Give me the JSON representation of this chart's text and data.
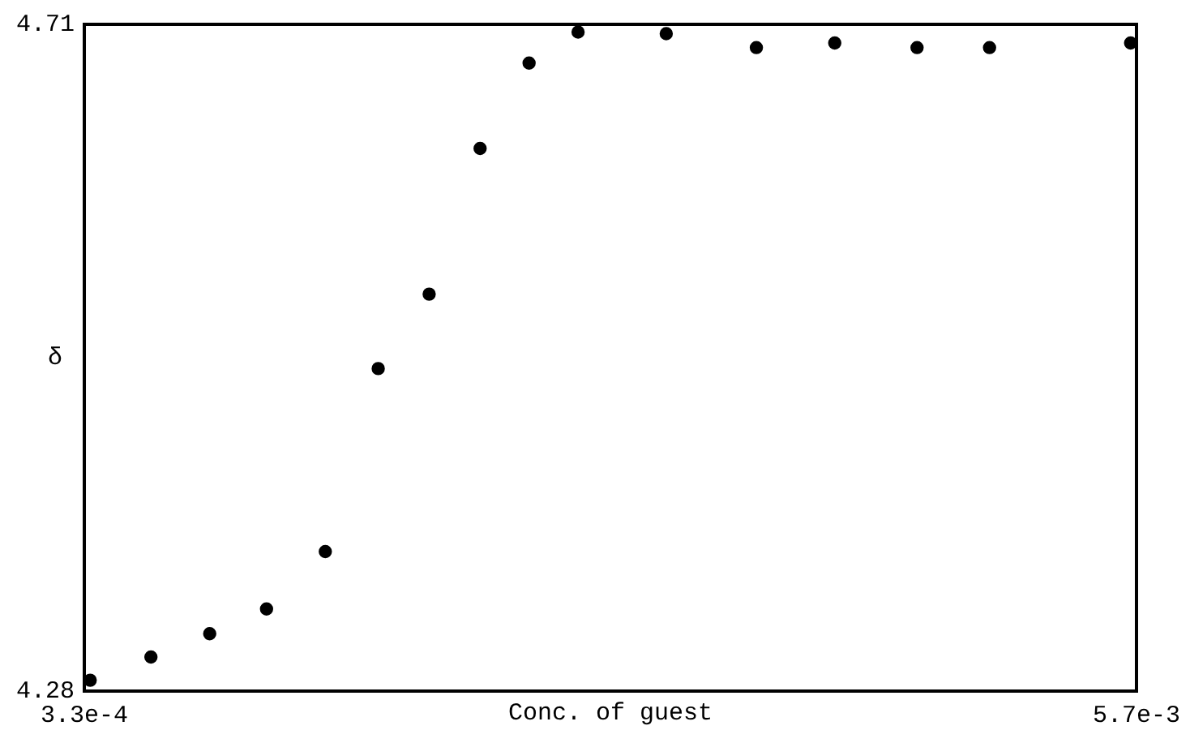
{
  "chart_data": {
    "type": "scatter",
    "xlabel": "Conc. of guest",
    "ylabel": "δ",
    "xlim": [
      0.00033,
      0.0057
    ],
    "ylim": [
      4.28,
      4.71
    ],
    "xticks": [
      {
        "value": 0.00033,
        "label": "3.3e-4"
      },
      {
        "value": 0.0057,
        "label": "5.7e-3"
      }
    ],
    "yticks": [
      4.28,
      4.71
    ],
    "legend": false,
    "marker": "circle",
    "series": [
      {
        "color": "#000000",
        "x": [
          0.00036,
          0.00067,
          0.00097,
          0.00126,
          0.00156,
          0.00183,
          0.00209,
          0.00235,
          0.0026,
          0.00285,
          0.0033,
          0.00376,
          0.00416,
          0.00458,
          0.00495,
          0.00567
        ],
        "values": [
          4.287,
          4.302,
          4.317,
          4.333,
          4.37,
          4.488,
          4.536,
          4.63,
          4.685,
          4.705,
          4.704,
          4.695,
          4.698,
          4.695,
          4.695,
          4.698
        ]
      }
    ]
  }
}
